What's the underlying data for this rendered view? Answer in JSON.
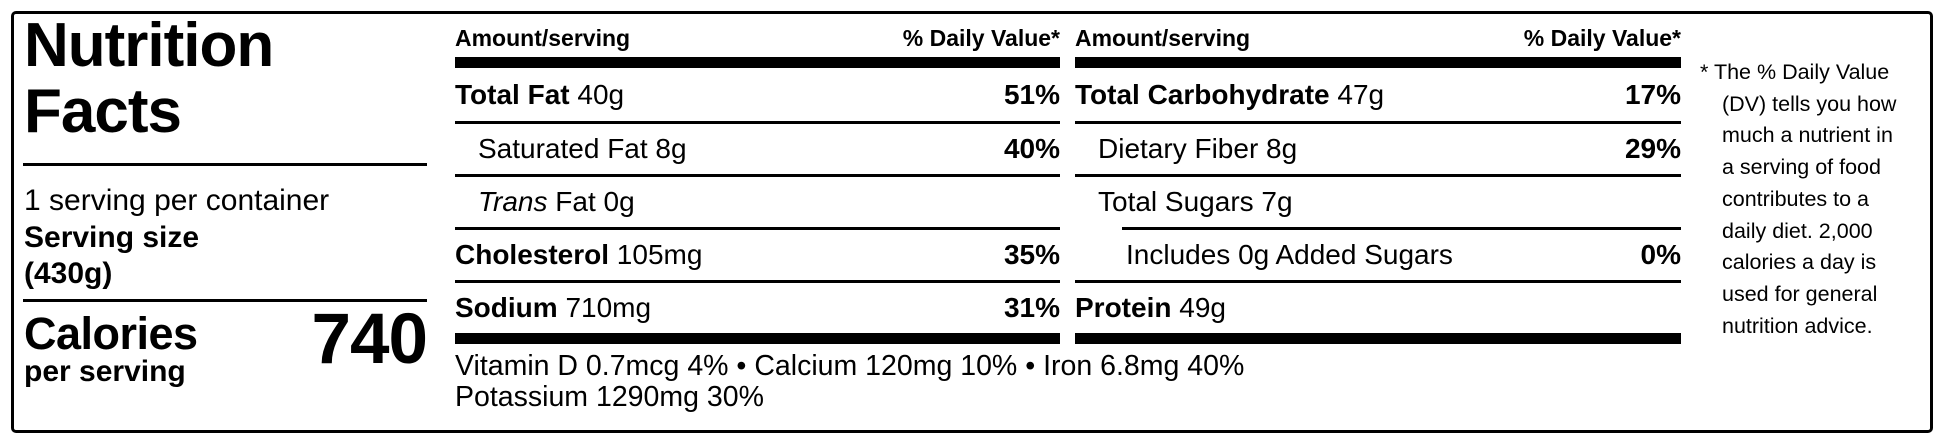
{
  "label": {
    "title": {
      "line1": "Nutrition",
      "line2": "Facts"
    },
    "serving_info": {
      "servings_per_container": "1 serving per container",
      "serving_size_label": "Serving size",
      "serving_size_amount": "(430g)"
    },
    "calories": {
      "label": "Calories",
      "sublabel": "per serving",
      "value": "740"
    },
    "columns": [
      {
        "header": {
          "amount": "Amount/serving",
          "daily_value": "% Daily Value*"
        },
        "rows": [
          {
            "bold": "Total Fat",
            "text": " 40g",
            "dv": "51%"
          },
          {
            "text": "Saturated Fat 8g",
            "dv": "40%"
          },
          {
            "italic": "Trans",
            "text": " Fat 0g"
          },
          {
            "bold": "Cholesterol",
            "text": " 105mg",
            "dv": "35%"
          },
          {
            "bold": "Sodium",
            "text": " 710mg",
            "dv": "31%"
          }
        ]
      },
      {
        "header": {
          "amount": "Amount/serving",
          "daily_value": "% Daily Value*"
        },
        "rows": [
          {
            "bold": "Total Carbohydrate",
            "text": " 47g",
            "dv": "17%"
          },
          {
            "text": "Dietary Fiber 8g",
            "dv": "29%"
          },
          {
            "text": "Total Sugars 7g"
          },
          {
            "text": "Includes 0g Added Sugars",
            "dv": "0%"
          },
          {
            "bold": "Protein",
            "text": " 49g"
          }
        ]
      }
    ],
    "micronutrients": {
      "line1": "Vitamin D 0.7mcg 4% • Calcium 120mg 10% • Iron 6.8mg 40%",
      "line2": "Potassium 1290mg 30%"
    },
    "footnote": {
      "lines": [
        "* The % Daily Value",
        "(DV) tells you how",
        "much a nutrient in",
        "a serving of food",
        "contributes to a",
        "daily diet. 2,000",
        "calories a day is",
        "used for general",
        "nutrition advice."
      ]
    },
    "colors": {
      "ink": "#000000",
      "background": "#ffffff"
    }
  }
}
